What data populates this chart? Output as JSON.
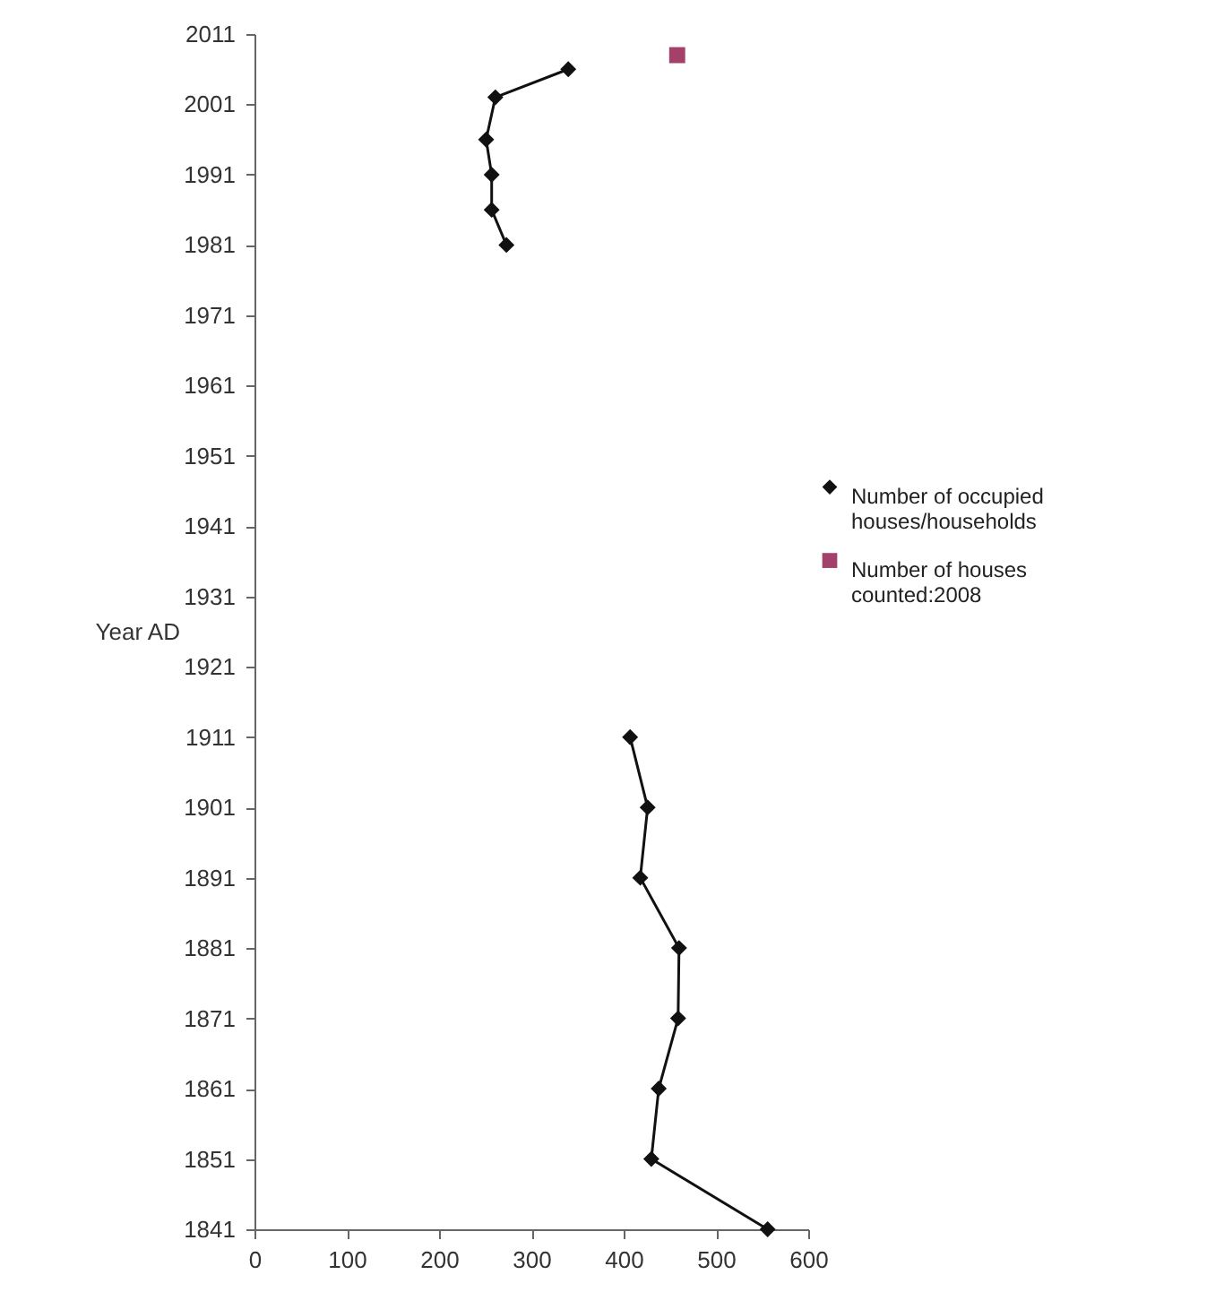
{
  "chart_data": {
    "type": "line",
    "ylabel": "Year AD",
    "xlim": [
      0,
      600
    ],
    "xticks": [
      0,
      100,
      200,
      300,
      400,
      500,
      600
    ],
    "ylim": [
      1841,
      2011
    ],
    "yticks": [
      1841,
      1851,
      1861,
      1871,
      1881,
      1891,
      1901,
      1911,
      1921,
      1931,
      1941,
      1951,
      1961,
      1971,
      1981,
      1991,
      2001,
      2011
    ],
    "grid": false,
    "legend": "right",
    "line_style": "solid",
    "series": [
      {
        "name": "Number of occupied houses/households",
        "color": "#111111",
        "marker": "diamond",
        "x": [
          556,
          430,
          438,
          459,
          460,
          418,
          426,
          407,
          null,
          273,
          257,
          257,
          251,
          261,
          340
        ],
        "values": [
          1841,
          1851,
          1861,
          1871,
          1881,
          1891,
          1901,
          1911,
          null,
          1981,
          1986,
          1991,
          1996,
          2002,
          2006
        ]
      },
      {
        "name": "Number of houses counted:2008",
        "color": "#a3416b",
        "type": "scatter",
        "marker": "square",
        "x": [
          458
        ],
        "values": [
          2008
        ]
      }
    ]
  }
}
